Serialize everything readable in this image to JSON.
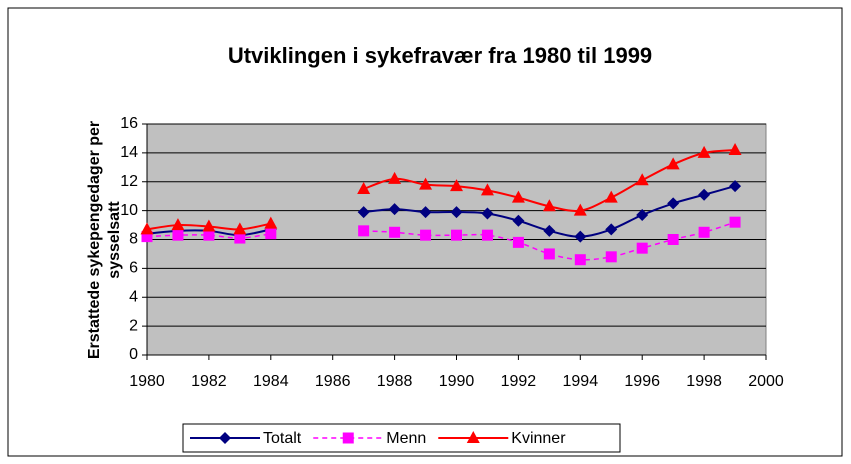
{
  "chart_data": {
    "type": "line",
    "title": "Utviklingen i sykefravær fra 1980 til 1999",
    "y_label": [
      "Erstattede sykepengedager per",
      "sysselsatt"
    ],
    "x": [
      1980,
      1981,
      1982,
      1983,
      1984,
      1985,
      1986,
      1987,
      1988,
      1989,
      1990,
      1991,
      1992,
      1993,
      1994,
      1995,
      1996,
      1997,
      1998,
      1999
    ],
    "series": [
      {
        "name": "Totalt",
        "color": "#000080",
        "marker": "diamond",
        "dash": false,
        "values": [
          8.4,
          8.6,
          8.6,
          8.3,
          8.7,
          null,
          null,
          9.9,
          10.1,
          9.9,
          9.9,
          9.8,
          9.3,
          8.6,
          8.2,
          8.7,
          9.7,
          10.5,
          11.1,
          11.7
        ]
      },
      {
        "name": "Menn",
        "color": "#ff00ff",
        "marker": "square",
        "dash": true,
        "values": [
          8.2,
          8.3,
          8.3,
          8.1,
          8.4,
          null,
          null,
          8.6,
          8.5,
          8.3,
          8.3,
          8.3,
          7.8,
          7.0,
          6.6,
          6.8,
          7.4,
          8.0,
          8.5,
          9.2
        ]
      },
      {
        "name": "Kvinner",
        "color": "#ff0000",
        "marker": "triangle",
        "dash": false,
        "values": [
          8.7,
          9.0,
          8.9,
          8.7,
          9.1,
          null,
          null,
          11.5,
          12.2,
          11.8,
          11.7,
          11.4,
          10.9,
          10.3,
          10.0,
          10.9,
          12.1,
          13.2,
          14.0,
          14.2
        ]
      }
    ],
    "xlim": [
      1980,
      2000
    ],
    "xticks": [
      1980,
      1982,
      1984,
      1986,
      1988,
      1990,
      1992,
      1994,
      1996,
      1998,
      2000
    ],
    "ylim": [
      0,
      16
    ],
    "yticks": [
      0,
      2,
      4,
      6,
      8,
      10,
      12,
      14,
      16
    ],
    "grid": true,
    "legend": "bottom"
  }
}
